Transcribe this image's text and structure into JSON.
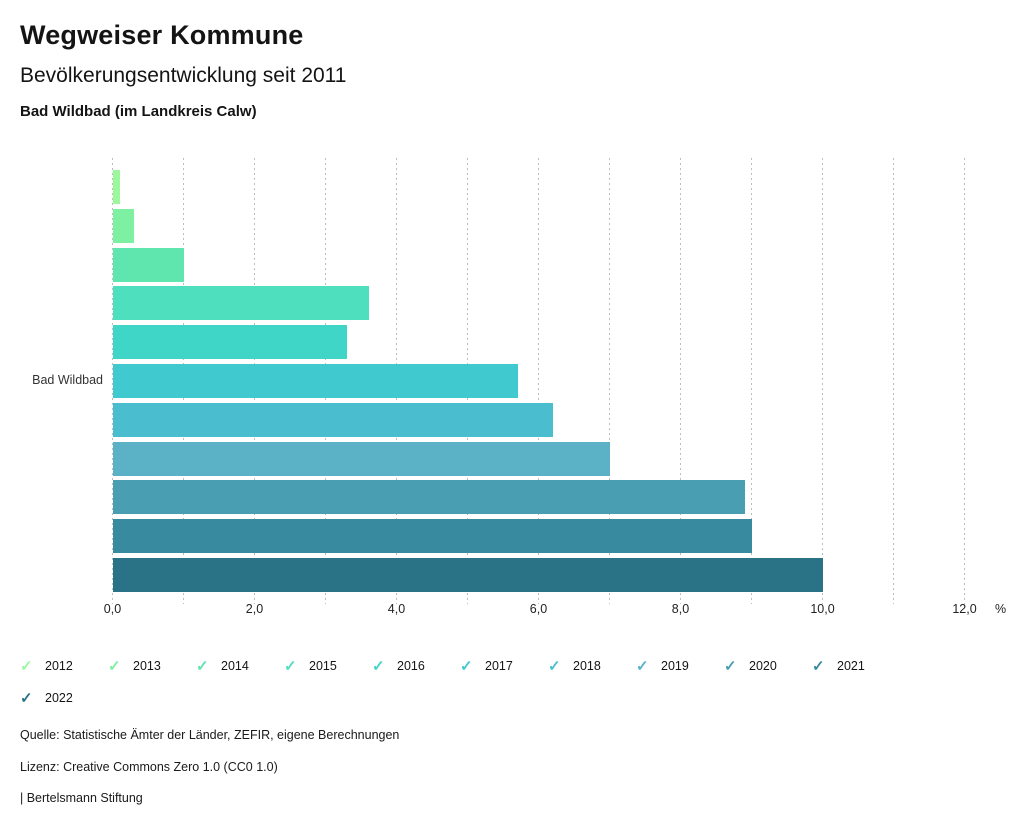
{
  "header": {
    "title": "Wegweiser Kommune",
    "subtitle": "Bevölkerungsentwicklung seit 2011",
    "region": "Bad Wildbad (im Landkreis Calw)"
  },
  "chart_data": {
    "type": "bar",
    "orientation": "horizontal",
    "category": "Bad Wildbad",
    "unit": "%",
    "xlabel": "",
    "ylabel": "Bad Wildbad",
    "xlim": [
      0,
      12
    ],
    "x_ticks": [
      "0,0",
      "2,0",
      "4,0",
      "6,0",
      "8,0",
      "10,0",
      "12,0"
    ],
    "x_tick_values": [
      0,
      2,
      4,
      6,
      8,
      10,
      12
    ],
    "grid": "dotted vertical, minor every 1.0",
    "legend_position": "bottom",
    "series": [
      {
        "name": "2012",
        "value": 0.1,
        "color": "#9BF89D"
      },
      {
        "name": "2013",
        "value": 0.3,
        "color": "#7DF0A1"
      },
      {
        "name": "2014",
        "value": 1.0,
        "color": "#5FE6AE"
      },
      {
        "name": "2015",
        "value": 3.6,
        "color": "#4DDFBE"
      },
      {
        "name": "2016",
        "value": 3.3,
        "color": "#3FD6C8"
      },
      {
        "name": "2017",
        "value": 5.7,
        "color": "#40C9CF"
      },
      {
        "name": "2018",
        "value": 6.2,
        "color": "#4ABDCF"
      },
      {
        "name": "2019",
        "value": 7.0,
        "color": "#5BB2C6"
      },
      {
        "name": "2020",
        "value": 8.9,
        "color": "#4A9EB1"
      },
      {
        "name": "2021",
        "value": 9.0,
        "color": "#388B9E"
      },
      {
        "name": "2022",
        "value": 10.0,
        "color": "#2A7386"
      }
    ]
  },
  "legend": {
    "check_glyph": "✓"
  },
  "footer": {
    "source": "Quelle: Statistische Ämter der Länder, ZEFIR, eigene Berechnungen",
    "license": "Lizenz: Creative Commons Zero 1.0 (CC0 1.0)",
    "branding": "| Bertelsmann Stiftung"
  }
}
